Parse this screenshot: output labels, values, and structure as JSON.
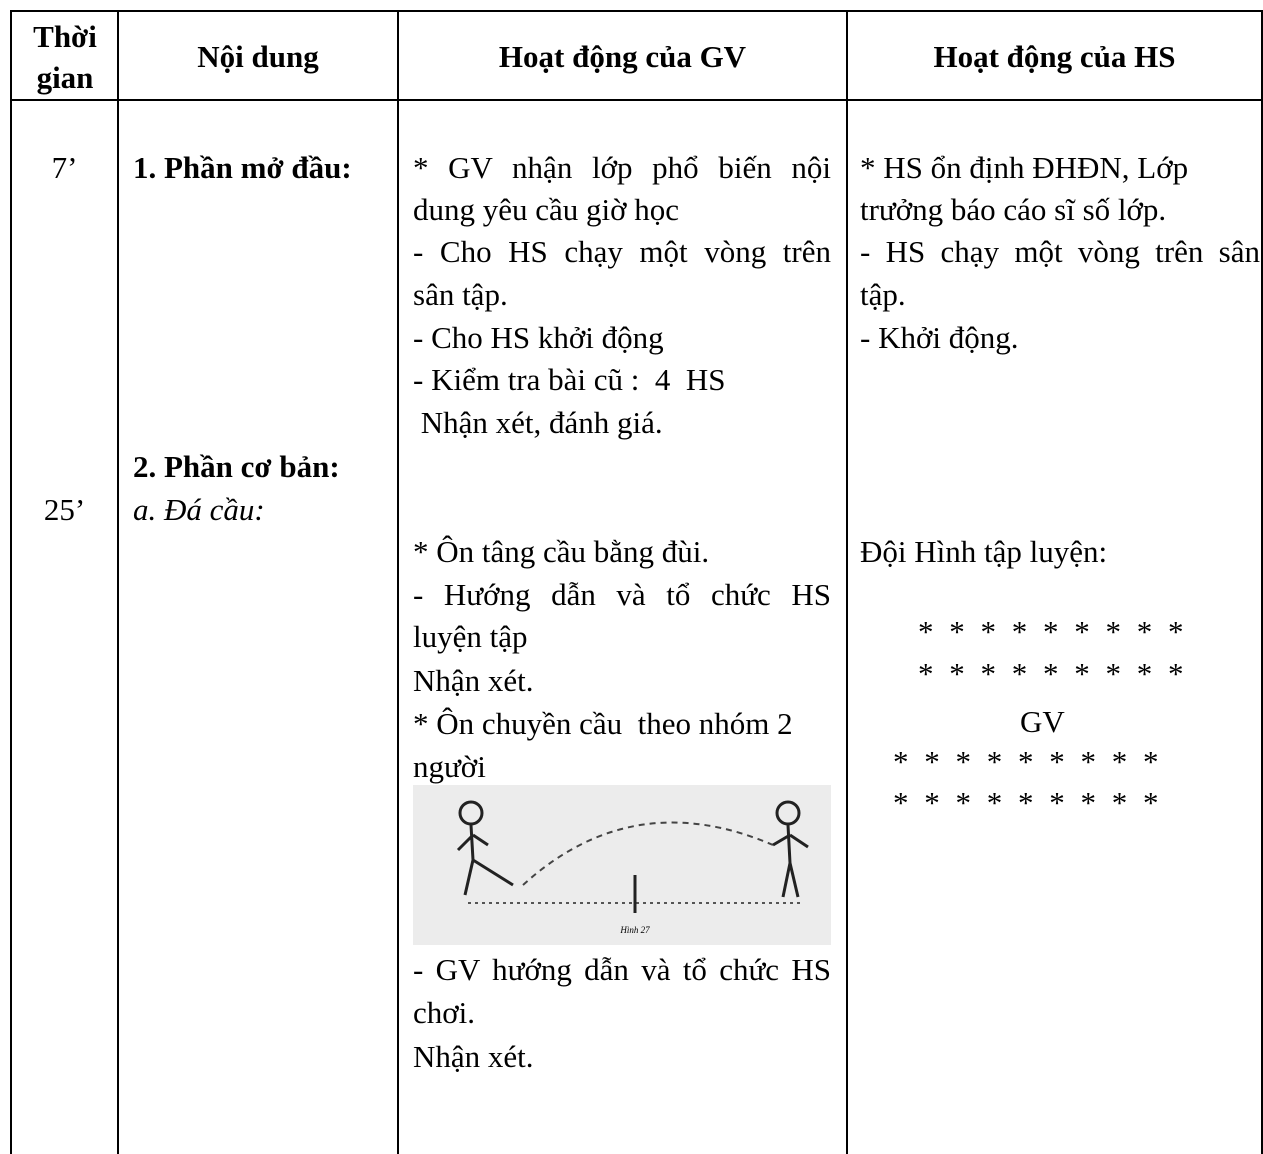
{
  "header": {
    "time": "Thời gian",
    "content": "Nội dung",
    "gv": "Hoạt động của GV",
    "hs": "Hoạt động của HS"
  },
  "times": [
    "7’",
    "25’"
  ],
  "content": {
    "part1": "1. Phần mở đầu:",
    "part2": "2. Phần cơ bản:",
    "part2a": "a. Đá cầu:"
  },
  "gv": [
    "* GV nhận lớp phổ biến nội",
    "dung yêu cầu giờ học",
    "- Cho HS chạy một vòng trên",
    "sân tập.",
    "- Cho HS khởi động",
    "- Kiểm tra bài cũ :  4  HS",
    " Nhận xét, đánh giá.",
    "* Ôn tâng cầu bằng đùi.",
    "- Hướng dẫn và tổ chức HS",
    "luyện tập",
    "Nhận xét.",
    "* Ôn chuyền cầu  theo nhóm 2",
    "người",
    "- GV hướng dẫn và tổ chức HS",
    "chơi.",
    "Nhận xét."
  ],
  "figure_caption": "Hình 27",
  "hs": [
    "* HS ổn định ĐHĐN, Lớp",
    "trưởng báo cáo sĩ số lớp.",
    "- HS chạy một vòng trên sân",
    "tập.",
    "- Khởi động.",
    "Đội Hình tập luyện:"
  ],
  "formation": [
    "* * * * * * * * *",
    "* * * * * * * * *",
    "GV",
    "* * * * * * * * *",
    "* * * * * * * * *"
  ]
}
